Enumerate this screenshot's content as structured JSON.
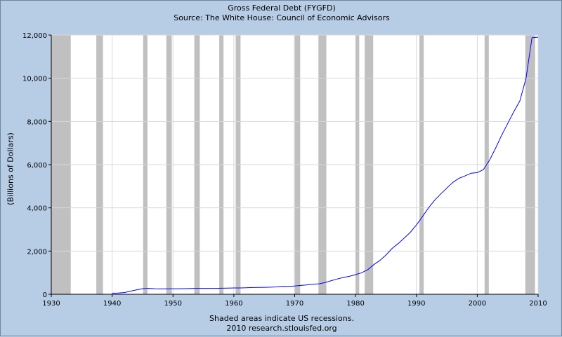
{
  "chart_data": {
    "type": "line",
    "title": "Gross Federal Debt (FYGFD)",
    "subtitle": "Source: The White House: Council of Economic Advisors",
    "ylabel": "(Billions of Dollars)",
    "xlabel": "",
    "footnote": "Shaded areas indicate US recessions.",
    "credit": "2010 research.stlouisfed.org",
    "xlim": [
      1930,
      2010
    ],
    "ylim": [
      0,
      12000
    ],
    "x_ticks": [
      1930,
      1940,
      1950,
      1960,
      1970,
      1980,
      1990,
      2000,
      2010
    ],
    "x_tick_labels": [
      "1930",
      "1940",
      "1950",
      "1960",
      "1970",
      "1980",
      "1990",
      "2000",
      "2010"
    ],
    "y_ticks": [
      0,
      2000,
      4000,
      6000,
      8000,
      10000,
      12000
    ],
    "y_tick_labels": [
      "0",
      "2,000",
      "4,000",
      "6,000",
      "8,000",
      "10,000",
      "12,000"
    ],
    "grid": true,
    "line_color": "#0000ff",
    "recession_color": "#c0c0c0",
    "recessions": [
      [
        1929.7,
        1933.2
      ],
      [
        1937.4,
        1938.5
      ],
      [
        1945.1,
        1945.8
      ],
      [
        1948.9,
        1949.8
      ],
      [
        1953.5,
        1954.4
      ],
      [
        1957.6,
        1958.3
      ],
      [
        1960.3,
        1961.1
      ],
      [
        1969.9,
        1970.9
      ],
      [
        1973.9,
        1975.2
      ],
      [
        1980.0,
        1980.6
      ],
      [
        1981.5,
        1982.9
      ],
      [
        1990.5,
        1991.2
      ],
      [
        2001.2,
        2001.9
      ],
      [
        2007.9,
        2009.5
      ]
    ],
    "series": [
      {
        "x": [
          1940,
          1941,
          1942,
          1943,
          1944,
          1945,
          1946,
          1947,
          1948,
          1949,
          1950,
          1951,
          1952,
          1953,
          1954,
          1955,
          1956,
          1957,
          1958,
          1959,
          1960,
          1961,
          1962,
          1963,
          1964,
          1965,
          1966,
          1967,
          1968,
          1969,
          1970,
          1971,
          1972,
          1973,
          1974,
          1975,
          1976,
          1977,
          1978,
          1979,
          1980,
          1981,
          1982,
          1983,
          1984,
          1985,
          1986,
          1987,
          1988,
          1989,
          1990,
          1991,
          1992,
          1993,
          1994,
          1995,
          1996,
          1997,
          1998,
          1999,
          2000,
          2001,
          2002,
          2003,
          2004,
          2005,
          2006,
          2007,
          2008,
          2009,
          2010
        ],
        "values": [
          51,
          58,
          79,
          143,
          204,
          260,
          271,
          257,
          252,
          253,
          257,
          255,
          259,
          266,
          271,
          274,
          273,
          272,
          280,
          287,
          291,
          293,
          303,
          310,
          316,
          322,
          328,
          340,
          369,
          366,
          381,
          408,
          436,
          466,
          484,
          542,
          629,
          706,
          777,
          829,
          909,
          995,
          1137,
          1372,
          1565,
          1817,
          2121,
          2346,
          2601,
          2868,
          3206,
          3598,
          4001,
          4351,
          4643,
          4921,
          5181,
          5369,
          5478,
          5605,
          5629,
          5770,
          6198,
          6760,
          7355,
          7905,
          8451,
          8951,
          9986,
          11876,
          11900
        ]
      }
    ]
  }
}
